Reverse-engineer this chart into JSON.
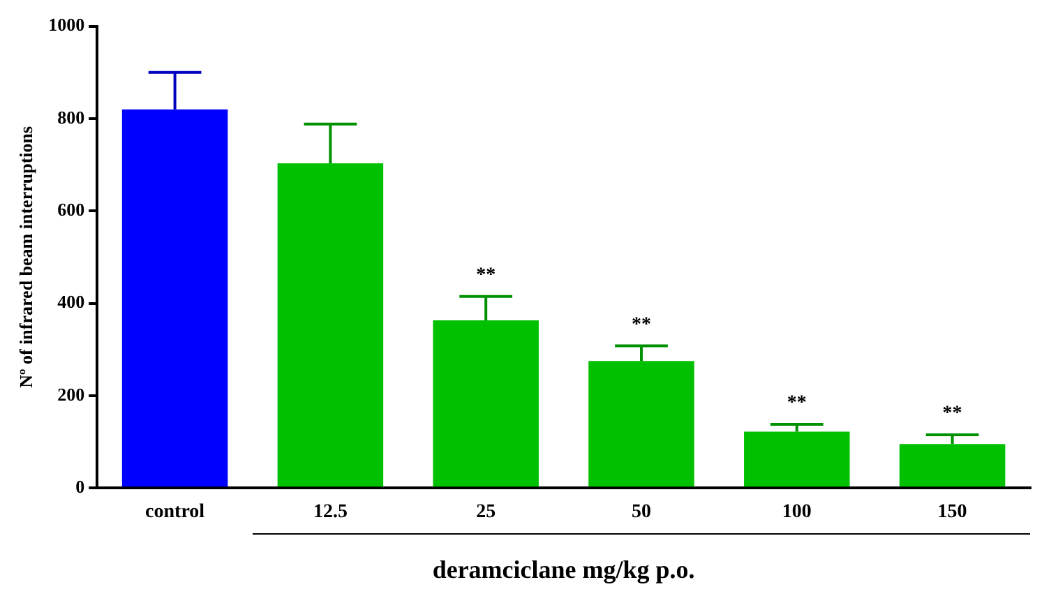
{
  "chart_data": {
    "type": "bar",
    "xlabel": "deramciclane mg/kg p.o.",
    "ylabel": "Nº of infrared beam interruptions",
    "categories": [
      "control",
      "12.5",
      "25",
      "50",
      "100",
      "150"
    ],
    "values": [
      820,
      703,
      363,
      275,
      122,
      95
    ],
    "colors": [
      "#0000ff",
      "#00c000",
      "#00c000",
      "#00c000",
      "#00c000",
      "#00c000"
    ],
    "errors": [
      [
        820,
        900
      ],
      [
        703,
        788
      ],
      [
        363,
        415
      ],
      [
        275,
        308
      ],
      [
        122,
        138
      ],
      [
        95,
        115
      ]
    ],
    "ylim": [
      0,
      1000
    ],
    "yticks": [
      0,
      200,
      400,
      600,
      800,
      1000
    ],
    "grid": false,
    "annotations": [
      {
        "text": "**",
        "x": "25",
        "y": 415
      },
      {
        "text": "**",
        "x": "50",
        "y": 308
      },
      {
        "text": "**",
        "x": "100",
        "y": 138
      },
      {
        "text": "**",
        "x": "150",
        "y": 115
      }
    ]
  }
}
